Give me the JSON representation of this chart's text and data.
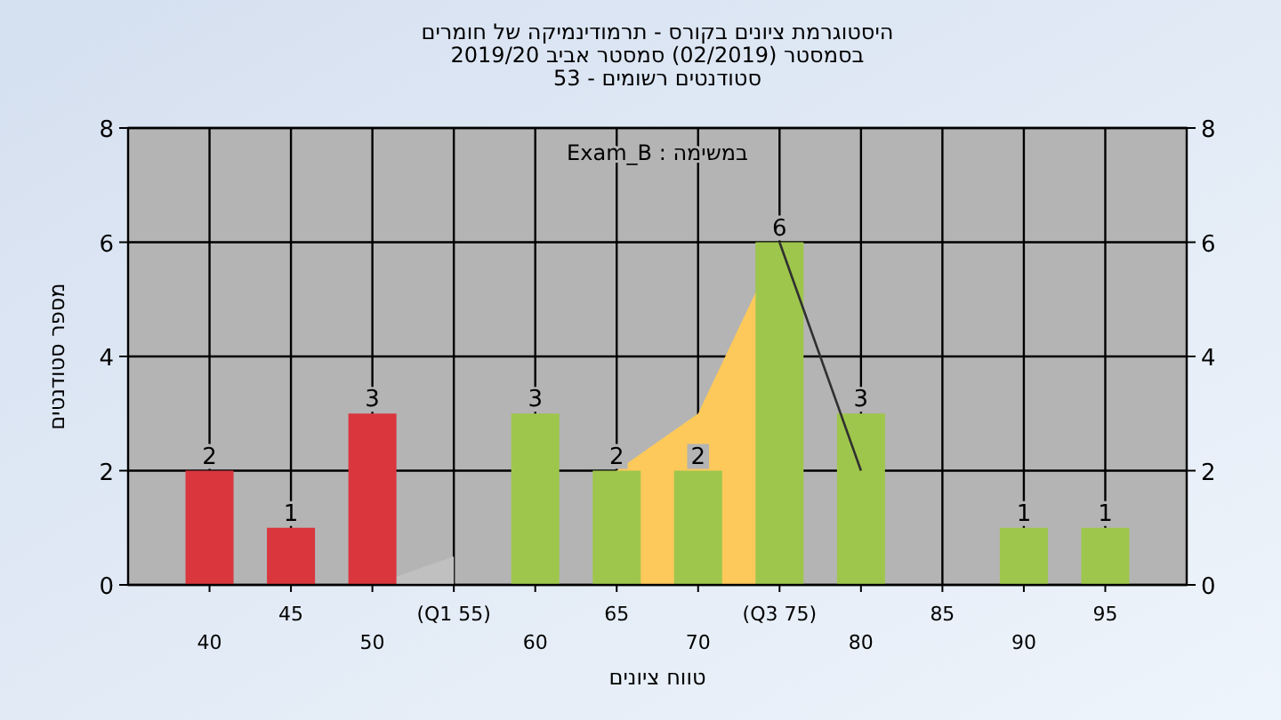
{
  "chart_data": {
    "type": "bar",
    "title": "היסטוגרמת ציונים בקורס - תרמודינמיקה של חומרים",
    "subtitle": "בסמסטר  (02/2019)  סמסטר אביב 2019/20\nסטודנטים רשומים - 53",
    "xlabel": "טווח ציונים",
    "ylabel": "מספר סטודנטים",
    "annotations": [
      "במשימה : Exam_B"
    ],
    "categories": [
      "40",
      "45",
      "50",
      "(Q1 55)",
      "60",
      "65",
      "70",
      "(Q3 75)",
      "80",
      "85",
      "90",
      "95"
    ],
    "series": [
      {
        "type": "area",
        "color": "#c0c0c0",
        "values": [
          null,
          null,
          0,
          0.5,
          null,
          null,
          null,
          null,
          null,
          null,
          null,
          null
        ]
      },
      {
        "type": "area",
        "color": "#fdc95a",
        "values": [
          null,
          null,
          null,
          null,
          null,
          2,
          3,
          6,
          null,
          null,
          null,
          null
        ]
      },
      {
        "type": "line",
        "color": "#303030",
        "values": [
          null,
          null,
          null,
          null,
          null,
          null,
          null,
          6,
          2,
          null,
          null,
          null
        ]
      },
      {
        "colors": [
          "#d9363e",
          "#d9363e",
          "#d9363e",
          "#9ec64c",
          "#9ec64c",
          "#9ec64c",
          "#9ec64c",
          "#9ec64c",
          "#9ec64c",
          "#9ec64c",
          "#9ec64c",
          "#9ec64c"
        ],
        "values": [
          2,
          1,
          3,
          0,
          3,
          2,
          2,
          6,
          3,
          0,
          1,
          1
        ],
        "value_labels": [
          "2",
          "1",
          "3",
          null,
          "3",
          "2",
          "2",
          "6",
          "3",
          null,
          "1",
          "1"
        ]
      }
    ],
    "ylim": [
      0,
      8
    ],
    "yticks": [
      0,
      2,
      4,
      6,
      8
    ],
    "y2lim": [
      0,
      8
    ],
    "y2ticks": [
      0,
      2,
      4,
      6,
      8
    ],
    "grid": true
  }
}
